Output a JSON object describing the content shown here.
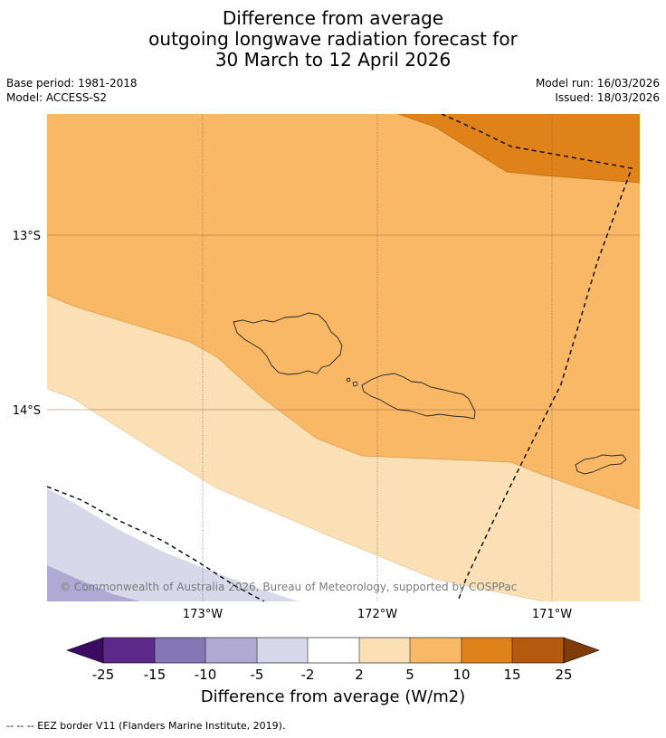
{
  "title": {
    "line1": "Difference from average",
    "line2": "outgoing longwave radiation forecast for",
    "line3": "30 March to 12 April 2026"
  },
  "meta": {
    "base_period": "Base period: 1981-2018",
    "model": "Model: ACCESS-S2",
    "model_run": "Model run: 16/03/2026",
    "issued": "Issued: 18/03/2026"
  },
  "map": {
    "lat_labels": [
      "13°S",
      "14°S"
    ],
    "lon_labels": [
      "173°W",
      "172°W",
      "171°W"
    ],
    "copyright": "© Commonwealth of Australia 2026, Bureau of Meteorology, supported by COSPPac",
    "region_colors": {
      "range_10_15": "#e0821a",
      "range_5_10": "#f9b866",
      "range_2_5": "#fce0b5",
      "range_-2_2": "#ffffff",
      "range_-5_-2": "#d8d8ea",
      "range_-10_-5": "#b0a9d3"
    }
  },
  "colorbar": {
    "ticks": [
      "-25",
      "-15",
      "-10",
      "-5",
      "-2",
      "2",
      "5",
      "10",
      "15",
      "25"
    ],
    "colors": [
      "#3d0a63",
      "#5b2a8b",
      "#8577b3",
      "#b0a9d3",
      "#d8d8ea",
      "#ffffff",
      "#fce0b5",
      "#f9b866",
      "#e0821a",
      "#b45a0e",
      "#7f3b08"
    ],
    "label": "Difference from average (W/m2)"
  },
  "footer": "--  --  -- EEZ border V11 (Flanders Marine Institute, 2019)."
}
